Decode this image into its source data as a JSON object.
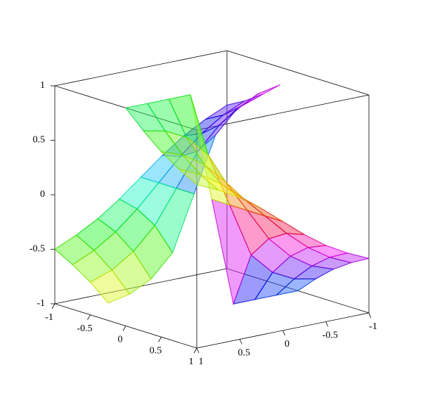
{
  "chart_data": {
    "type": "surface",
    "x": [
      -1,
      -0.75,
      -0.5,
      -0.25,
      0,
      0.25,
      0.5,
      0.75,
      1
    ],
    "y": [
      -1,
      -0.75,
      -0.5,
      -0.25,
      0,
      0.25,
      0.5,
      0.75,
      1
    ],
    "z": [
      [
        0.5,
        0.59,
        0.7,
        0.84,
        -1,
        -0.84,
        -0.7,
        -0.59,
        -0.5
      ],
      [
        0.41,
        0.5,
        0.63,
        0.8,
        -1,
        -0.8,
        -0.63,
        -0.5,
        -0.41
      ],
      [
        0.3,
        0.37,
        0.5,
        0.7,
        -1,
        -0.7,
        -0.5,
        -0.37,
        -0.3
      ],
      [
        0.16,
        0.2,
        0.3,
        0.5,
        -1,
        -0.5,
        -0.3,
        -0.2,
        -0.16
      ],
      [
        0,
        0,
        0,
        0,
        0,
        0,
        0,
        0,
        0
      ],
      [
        -0.16,
        -0.2,
        -0.3,
        -0.5,
        1,
        0.5,
        0.3,
        0.2,
        0.16
      ],
      [
        -0.3,
        -0.37,
        -0.5,
        -0.7,
        1,
        0.7,
        0.5,
        0.37,
        0.3
      ],
      [
        -0.41,
        -0.5,
        -0.63,
        -0.8,
        1,
        0.8,
        0.63,
        0.5,
        0.41
      ],
      [
        -0.5,
        -0.59,
        -0.7,
        -0.84,
        1,
        0.84,
        0.7,
        0.59,
        0.5
      ]
    ],
    "xlim": [
      -1,
      1
    ],
    "ylim": [
      -1,
      1
    ],
    "zlim": [
      -1,
      1
    ],
    "xticks": [
      -1,
      -0.5,
      0,
      0.5,
      1
    ],
    "yticks": [
      -1,
      -0.5,
      0,
      0.5,
      1
    ],
    "zticks": [
      -1,
      -0.5,
      0,
      0.5,
      1
    ],
    "box": true
  }
}
